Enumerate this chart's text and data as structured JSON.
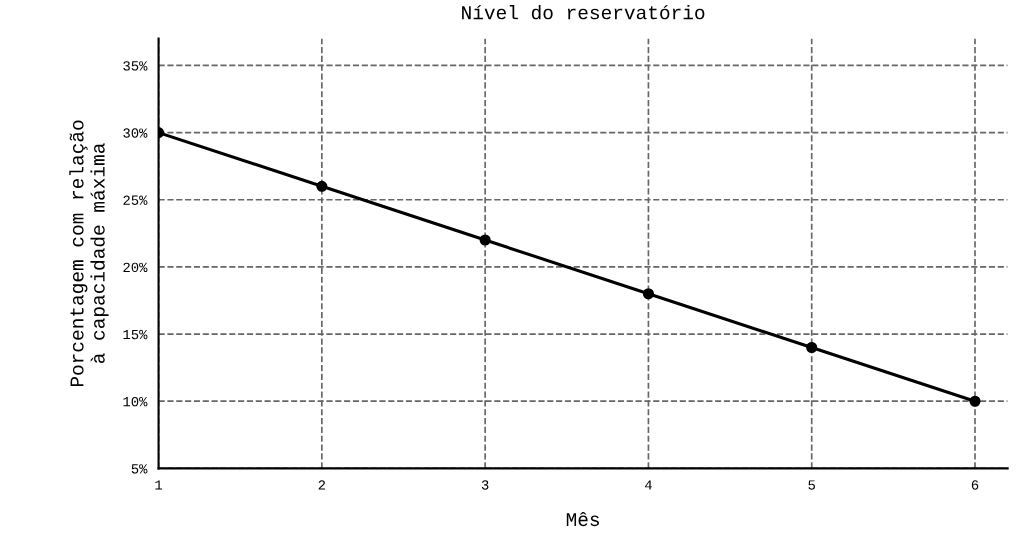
{
  "chart_data": {
    "type": "line",
    "title": "Nível do reservatório",
    "xlabel": "Mês",
    "ylabel": "Porcentagem com relação\nà capacidade máxima",
    "x": [
      1,
      2,
      3,
      4,
      5,
      6
    ],
    "series": [
      {
        "color": "#000000",
        "values": [
          30,
          26,
          22,
          18,
          14,
          10
        ]
      }
    ],
    "xlim": [
      1,
      6.2
    ],
    "xticks": [
      1,
      2,
      3,
      4,
      5,
      6
    ],
    "ylim": [
      5,
      37
    ],
    "yticks": [
      {
        "value": 5,
        "label": "5%"
      },
      {
        "value": 10,
        "label": "10%"
      },
      {
        "value": 15,
        "label": "15%"
      },
      {
        "value": 20,
        "label": "20%"
      },
      {
        "value": 25,
        "label": "25%"
      },
      {
        "value": 30,
        "label": "30%"
      },
      {
        "value": 35,
        "label": "35%"
      }
    ],
    "grid": true,
    "marker": "circle",
    "line_style": "solid"
  }
}
